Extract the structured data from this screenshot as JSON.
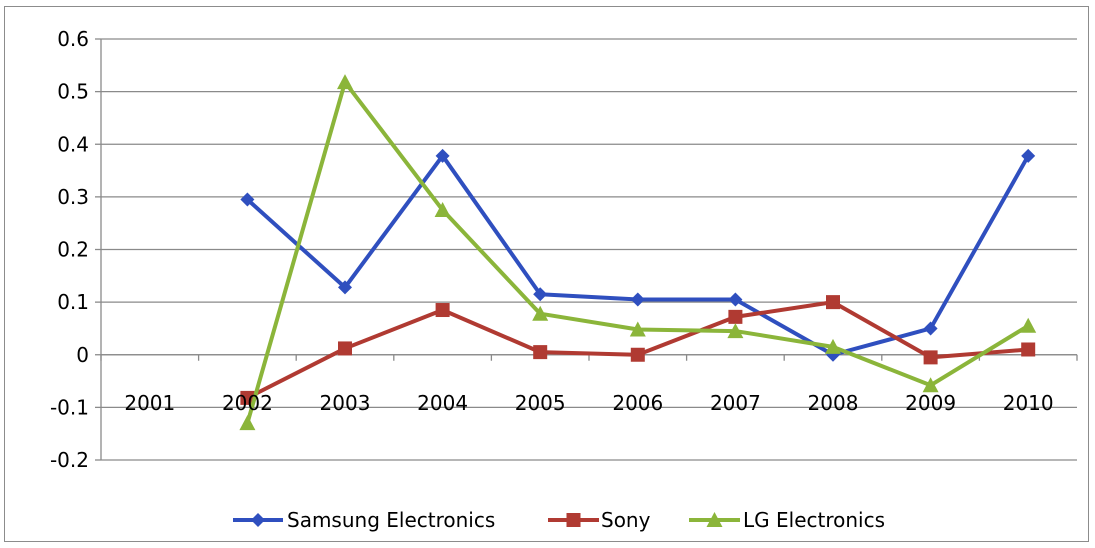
{
  "chart_data": {
    "type": "line",
    "categories": [
      "2001",
      "2002",
      "2003",
      "2004",
      "2005",
      "2006",
      "2007",
      "2008",
      "2009",
      "2010"
    ],
    "ylim": [
      -0.2,
      0.6
    ],
    "y_ticks": [
      "-0.2",
      "-0.1",
      "0",
      "0.1",
      "0.2",
      "0.3",
      "0.4",
      "0.5",
      "0.6"
    ],
    "grid": "horizontal",
    "legend_position": "bottom",
    "series": [
      {
        "name": "Samsung Electronics",
        "color": "#2f4fbf",
        "marker": "diamond",
        "values": [
          null,
          0.295,
          0.128,
          0.378,
          0.115,
          0.105,
          0.105,
          0.0,
          0.05,
          0.378
        ]
      },
      {
        "name": "Sony",
        "color": "#b03a32",
        "marker": "square",
        "values": [
          null,
          -0.082,
          0.012,
          0.085,
          0.005,
          0.0,
          0.072,
          0.1,
          -0.005,
          0.01
        ]
      },
      {
        "name": "LG Electronics",
        "color": "#8bb53a",
        "marker": "triangle",
        "values": [
          null,
          -0.13,
          0.518,
          0.275,
          0.078,
          0.048,
          0.045,
          0.015,
          -0.058,
          0.055
        ]
      }
    ]
  }
}
